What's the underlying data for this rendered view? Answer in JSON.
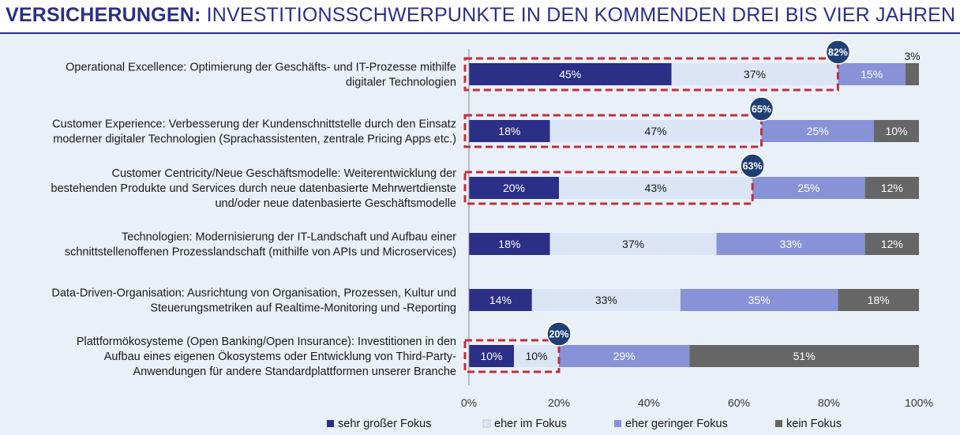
{
  "header": {
    "title_strong": "VERSICHERUNGEN:",
    "title_rest": " INVESTITIONSSCHWERPUNKTE IN DEN KOMMENDEN DREI BIS VIER JAHREN"
  },
  "chart_data": {
    "type": "bar",
    "orientation": "horizontal",
    "stacked": true,
    "xlim": [
      0,
      100
    ],
    "x_ticks": [
      "0%",
      "20%",
      "40%",
      "60%",
      "80%",
      "100%"
    ],
    "grid": false,
    "legend_position": "bottom",
    "categories": [
      [
        "Operational Excellence: Optimierung der Geschäfts- und IT-Prozesse mithilfe",
        "digitaler Technologien"
      ],
      [
        "Customer Experience: Verbesserung der Kundenschnittstelle durch den Einsatz",
        "moderner digitaler Technologien (Sprachassistenten, zentrale Pricing Apps etc.)"
      ],
      [
        "Customer Centricity/Neue Geschäftsmodelle: Weiterentwicklung der",
        "bestehenden Produkte und Services durch neue datenbasierte Mehrwertdienste",
        "und/oder neue datenbasierte Geschäftsmodelle"
      ],
      [
        "Technologien: Modernisierung der IT-Landschaft und Aufbau einer",
        "schnittstellenoffenen  Prozesslandschaft (mithilfe von APIs und Microservices)"
      ],
      [
        "Data-Driven-Organisation: Ausrichtung von Organisation, Prozessen, Kultur und",
        "Steuerungsmetriken auf Realtime-Monitoring und -Reporting"
      ],
      [
        "Plattformökosysteme (Open Banking/Open Insurance): Investitionen in den",
        "Aufbau eines eigenen Ökosystems oder Entwicklung von Third-Party-",
        "Anwendungen für andere Standardplattformen unserer Branche"
      ]
    ],
    "series": [
      {
        "name": "sehr großer Fokus",
        "color": "#2b2f86",
        "values": [
          45,
          18,
          20,
          18,
          14,
          10
        ],
        "labels": [
          "45%",
          "18%",
          "20%",
          "18%",
          "14%",
          "10%"
        ]
      },
      {
        "name": "eher im Fokus",
        "color": "#dbe5f5",
        "values": [
          37,
          47,
          43,
          37,
          33,
          10
        ],
        "labels": [
          "37%",
          "47%",
          "43%",
          "37%",
          "33%",
          "10%"
        ]
      },
      {
        "name": "eher geringer Fokus",
        "color": "#8793d6",
        "values": [
          15,
          25,
          25,
          33,
          35,
          29
        ],
        "labels": [
          "15%",
          "25%",
          "25%",
          "33%",
          "35%",
          "29%"
        ]
      },
      {
        "name": "kein Fokus",
        "color": "#666666",
        "values": [
          3,
          10,
          12,
          12,
          18,
          51
        ],
        "labels": [
          "3%",
          "10%",
          "12%",
          "12%",
          "18%",
          "51%"
        ]
      }
    ],
    "highlights": [
      {
        "row": 0,
        "value": 82,
        "label": "82%"
      },
      {
        "row": 1,
        "value": 65,
        "label": "65%"
      },
      {
        "row": 2,
        "value": 63,
        "label": "63%"
      },
      {
        "row": 5,
        "value": 20,
        "label": "20%"
      }
    ],
    "highlight_color": "#c0303a",
    "badge_color": "#1f3f73"
  }
}
